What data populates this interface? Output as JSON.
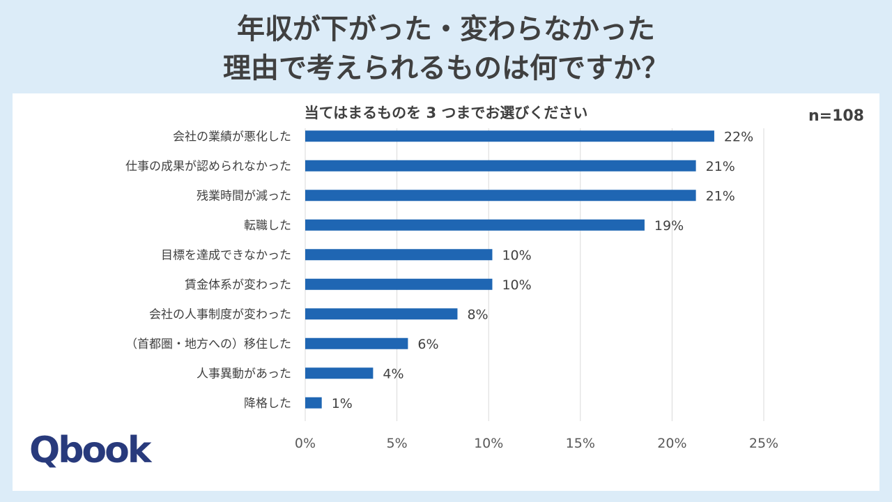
{
  "title": {
    "line1": "年収が下がった・変わらなかった",
    "line2": "理由で考えられるものは何ですか？"
  },
  "subtitle": "当てはまるものを 3 つまでお選びください",
  "sample": "n=108",
  "logo": {
    "text": "Qbook"
  },
  "colors": {
    "bar": "#1f66b3",
    "background": "#dcecf8",
    "grid": "#d9d9d9"
  },
  "chart_data": {
    "type": "bar",
    "orientation": "horizontal",
    "title": "当てはまるものを 3 つまでお選びください",
    "categories": [
      "会社の業績が悪化した",
      "仕事の成果が認められなかった",
      "残業時間が減った",
      "転職した",
      "目標を達成できなかった",
      "賃金体系が変わった",
      "会社の人事制度が変わった",
      "（首都圏・地方への）移住した",
      "人事異動があった",
      "降格した"
    ],
    "values": [
      22.3,
      21.3,
      21.3,
      18.5,
      10.2,
      10.2,
      8.3,
      5.6,
      3.7,
      0.9
    ],
    "data_labels": [
      "22%",
      "21%",
      "21%",
      "19%",
      "10%",
      "10%",
      "8%",
      "6%",
      "4%",
      "1%"
    ],
    "xlim": [
      0,
      25
    ],
    "xticks": [
      0,
      5,
      10,
      15,
      20,
      25
    ],
    "xtick_labels": [
      "0%",
      "5%",
      "10%",
      "15%",
      "20%",
      "25%"
    ],
    "grid": true
  }
}
